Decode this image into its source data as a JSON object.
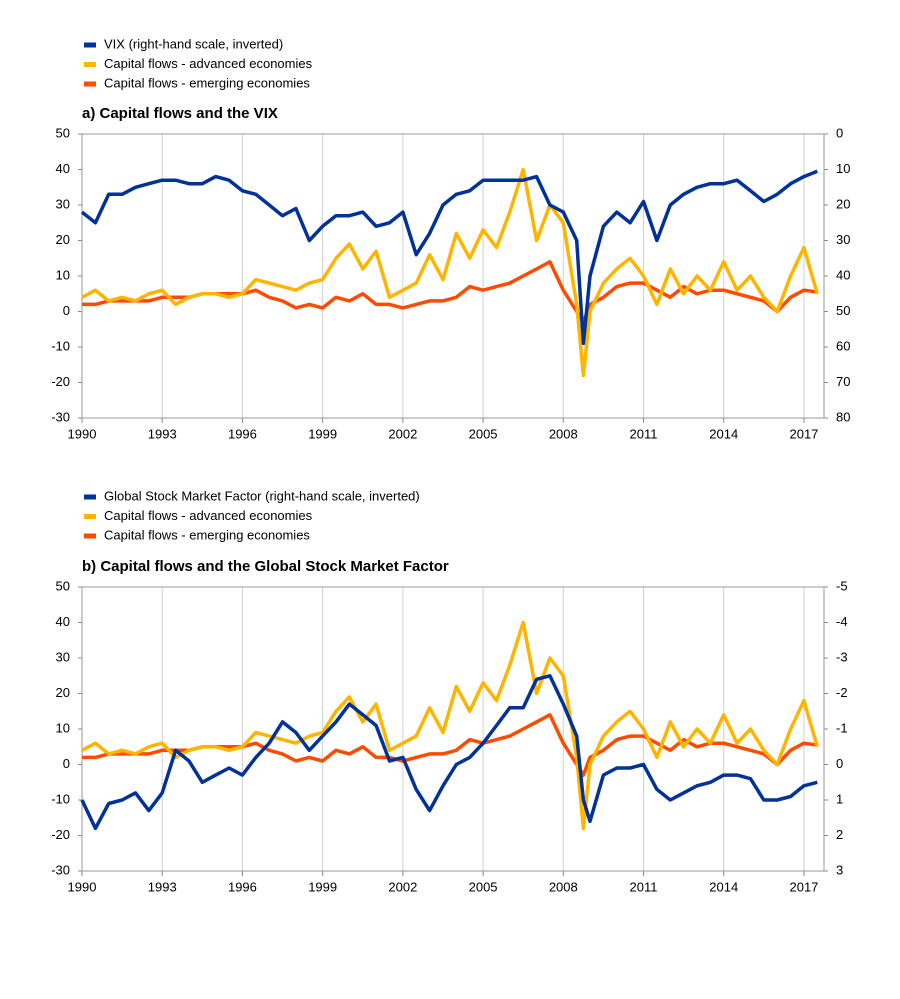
{
  "chart_data": [
    {
      "type": "line",
      "title": "a) Capital flows and the VIX",
      "legend": "top",
      "x": [
        1990,
        1990.5,
        1991,
        1991.5,
        1992,
        1992.5,
        1993,
        1993.5,
        1994,
        1994.5,
        1995,
        1995.5,
        1996,
        1996.5,
        1997,
        1997.5,
        1998,
        1998.5,
        1999,
        1999.5,
        2000,
        2000.5,
        2001,
        2001.5,
        2002,
        2002.5,
        2003,
        2003.5,
        2004,
        2004.5,
        2005,
        2005.5,
        2006,
        2006.5,
        2007,
        2007.5,
        2008,
        2008.5,
        2008.75,
        2009,
        2009.5,
        2010,
        2010.5,
        2011,
        2011.5,
        2012,
        2012.5,
        2013,
        2013.5,
        2014,
        2014.5,
        2015,
        2015.5,
        2016,
        2016.5,
        2017,
        2017.5
      ],
      "xlim": [
        1990,
        2017.75
      ],
      "xticks": [
        1990,
        1993,
        1996,
        1999,
        2002,
        2005,
        2008,
        2011,
        2014,
        2017
      ],
      "grid": true,
      "ylim": [
        -30,
        50
      ],
      "yticks": [
        -30,
        -20,
        -10,
        0,
        10,
        20,
        30,
        40,
        50
      ],
      "y2lim": [
        80,
        0
      ],
      "y2ticks": [
        0,
        10,
        20,
        30,
        40,
        50,
        60,
        70,
        80
      ],
      "series": [
        {
          "name": "VIX (right-hand scale, inverted)",
          "color": "#003299",
          "axis": "y2",
          "values": [
            22,
            25,
            17,
            17,
            15,
            14,
            13,
            13,
            14,
            14,
            12,
            13,
            16,
            17,
            20,
            23,
            21,
            30,
            26,
            23,
            23,
            22,
            26,
            25,
            22,
            34,
            28,
            20,
            17,
            16,
            13,
            13,
            13,
            13,
            12,
            20,
            22,
            30,
            59,
            40,
            26,
            22,
            25,
            19,
            30,
            20,
            17,
            15,
            14,
            14,
            13,
            16,
            19,
            17,
            14,
            12,
            10.5
          ]
        },
        {
          "name": "Capital flows - advanced economies",
          "color": "#ffb400",
          "values": [
            4,
            6,
            3,
            4,
            3,
            5,
            6,
            2,
            4,
            5,
            5,
            4,
            5,
            9,
            8,
            7,
            6,
            8,
            9,
            15,
            19,
            12,
            17,
            4,
            6,
            8,
            16,
            9,
            22,
            15,
            23,
            18,
            28,
            40,
            20,
            30,
            25,
            2,
            -18,
            0,
            8,
            12,
            15,
            10,
            2,
            12,
            5,
            10,
            6,
            14,
            6,
            10,
            4,
            0,
            10,
            18,
            5
          ]
        },
        {
          "name": "Capital flows - emerging economies",
          "color": "#ff4b00",
          "values": [
            2,
            2,
            3,
            3,
            3,
            3,
            4,
            4,
            4,
            5,
            5,
            5,
            5,
            6,
            4,
            3,
            1,
            2,
            1,
            4,
            3,
            5,
            2,
            2,
            1,
            2,
            3,
            3,
            4,
            7,
            6,
            7,
            8,
            10,
            12,
            14,
            6,
            0,
            -3,
            2,
            4,
            7,
            8,
            8,
            6,
            4,
            7,
            5,
            6,
            6,
            5,
            4,
            3,
            0,
            4,
            6,
            5.5
          ]
        }
      ]
    },
    {
      "type": "line",
      "title": "b) Capital flows and the Global Stock Market Factor",
      "legend": "top",
      "x": [
        1990,
        1990.5,
        1991,
        1991.5,
        1992,
        1992.5,
        1993,
        1993.5,
        1994,
        1994.5,
        1995,
        1995.5,
        1996,
        1996.5,
        1997,
        1997.5,
        1998,
        1998.5,
        1999,
        1999.5,
        2000,
        2000.5,
        2001,
        2001.5,
        2002,
        2002.5,
        2003,
        2003.5,
        2004,
        2004.5,
        2005,
        2005.5,
        2006,
        2006.5,
        2007,
        2007.5,
        2008,
        2008.5,
        2008.75,
        2009,
        2009.5,
        2010,
        2010.5,
        2011,
        2011.5,
        2012,
        2012.5,
        2013,
        2013.5,
        2014,
        2014.5,
        2015,
        2015.5,
        2016,
        2016.5,
        2017,
        2017.5
      ],
      "xlim": [
        1990,
        2017.75
      ],
      "xticks": [
        1990,
        1993,
        1996,
        1999,
        2002,
        2005,
        2008,
        2011,
        2014,
        2017
      ],
      "grid": true,
      "ylim": [
        -30,
        50
      ],
      "yticks": [
        -30,
        -20,
        -10,
        0,
        10,
        20,
        30,
        40,
        50
      ],
      "y2lim": [
        3,
        -5
      ],
      "y2ticks": [
        -5,
        -4,
        -3,
        -2,
        -1,
        0,
        1,
        2,
        3
      ],
      "series": [
        {
          "name": "Global Stock Market Factor (right-hand scale, inverted)",
          "color": "#003299",
          "axis": "y2",
          "values": [
            1,
            1.8,
            1.1,
            1,
            0.8,
            1.3,
            0.8,
            -0.4,
            -0.1,
            0.5,
            0.3,
            0.1,
            0.3,
            -0.2,
            -0.6,
            -1.2,
            -0.9,
            -0.4,
            -0.8,
            -1.2,
            -1.7,
            -1.4,
            -1.1,
            -0.1,
            -0.2,
            0.7,
            1.3,
            0.6,
            0,
            -0.2,
            -0.6,
            -1.1,
            -1.6,
            -1.6,
            -2.4,
            -2.5,
            -1.7,
            -0.8,
            1,
            1.6,
            0.3,
            0.1,
            0.1,
            0,
            0.7,
            1,
            0.8,
            0.6,
            0.5,
            0.3,
            0.3,
            0.4,
            1,
            1,
            0.9,
            0.6,
            0.5
          ]
        },
        {
          "name": "Capital flows - advanced economies",
          "color": "#ffb400",
          "values": [
            4,
            6,
            3,
            4,
            3,
            5,
            6,
            2,
            4,
            5,
            5,
            4,
            5,
            9,
            8,
            7,
            6,
            8,
            9,
            15,
            19,
            12,
            17,
            4,
            6,
            8,
            16,
            9,
            22,
            15,
            23,
            18,
            28,
            40,
            20,
            30,
            25,
            2,
            -18,
            0,
            8,
            12,
            15,
            10,
            2,
            12,
            5,
            10,
            6,
            14,
            6,
            10,
            4,
            0,
            10,
            18,
            5
          ]
        },
        {
          "name": "Capital flows - emerging economies",
          "color": "#ff4b00",
          "values": [
            2,
            2,
            3,
            3,
            3,
            3,
            4,
            4,
            4,
            5,
            5,
            5,
            5,
            6,
            4,
            3,
            1,
            2,
            1,
            4,
            3,
            5,
            2,
            2,
            1,
            2,
            3,
            3,
            4,
            7,
            6,
            7,
            8,
            10,
            12,
            14,
            6,
            0,
            -3,
            2,
            4,
            7,
            8,
            8,
            6,
            4,
            7,
            5,
            6,
            6,
            5,
            4,
            3,
            0,
            4,
            6,
            5.5
          ]
        }
      ]
    }
  ]
}
